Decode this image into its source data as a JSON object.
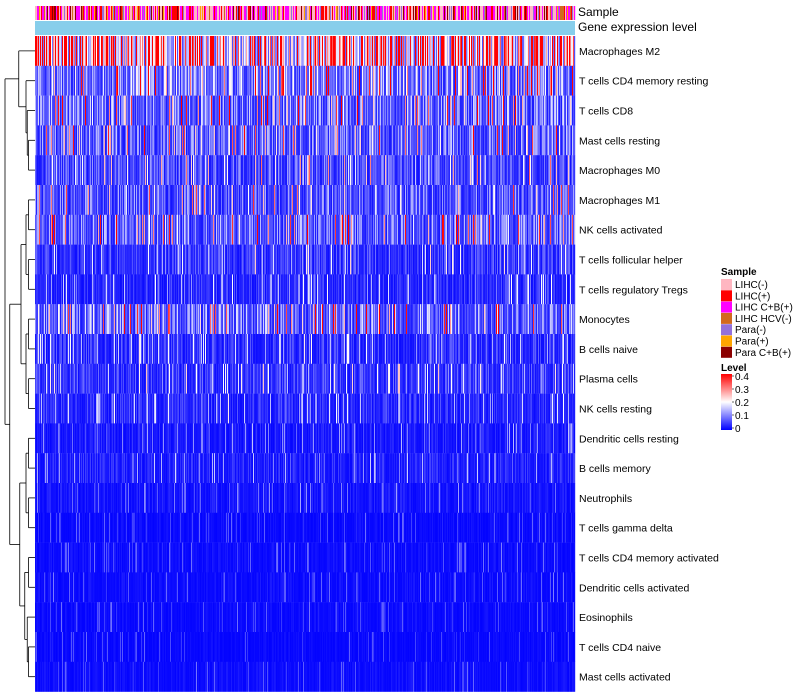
{
  "chart_data": {
    "type": "heatmap",
    "title": "",
    "annotation_labels": [
      "Sample",
      "Gene expression level"
    ],
    "row_labels": [
      "Macrophages M2",
      "T cells CD4 memory resting",
      "T cells CD8",
      "Mast cells resting",
      "Macrophages M0",
      "Macrophages M1",
      "NK cells activated",
      "T cells follicular helper",
      "T cells regulatory  Tregs",
      "Monocytes",
      "B cells naive",
      "Plasma cells",
      "NK cells resting",
      "Dendritic cells resting",
      "B cells memory",
      "Neutrophils",
      "T cells gamma delta",
      "T cells CD4 memory activated",
      "Dendritic cells activated",
      "Eosinophils",
      "T cells CD4 naive",
      "Mast cells activated"
    ],
    "row_mean_levels": [
      0.28,
      0.12,
      0.1,
      0.09,
      0.07,
      0.08,
      0.09,
      0.05,
      0.04,
      0.1,
      0.045,
      0.05,
      0.04,
      0.025,
      0.03,
      0.02,
      0.01,
      0.012,
      0.012,
      0.01,
      0.008,
      0.012
    ],
    "sample_groups": [
      {
        "name": "LIHC(-)",
        "color": "#FFB6C1"
      },
      {
        "name": "LIHC(+)",
        "color": "#FF0000"
      },
      {
        "name": "LIHC C+B(+)",
        "color": "#FF00FF"
      },
      {
        "name": "LIHC HCV(-)",
        "color": "#D2691E"
      },
      {
        "name": "Para(-)",
        "color": "#9370DB"
      },
      {
        "name": "Para(+)",
        "color": "#FFA500"
      },
      {
        "name": "Para C+B(+)",
        "color": "#8B0000"
      }
    ],
    "gene_expression_color": "#87CEEB",
    "n_samples": 540,
    "level_legend": {
      "title": "Level",
      "range": [
        0,
        0.4
      ],
      "ticks": [
        "0.4",
        "0.3",
        "0.2",
        "0.1",
        "0"
      ],
      "colors": [
        "#0000FF",
        "#FFFFFF",
        "#FF0000"
      ]
    },
    "sample_legend_title": "Sample"
  }
}
